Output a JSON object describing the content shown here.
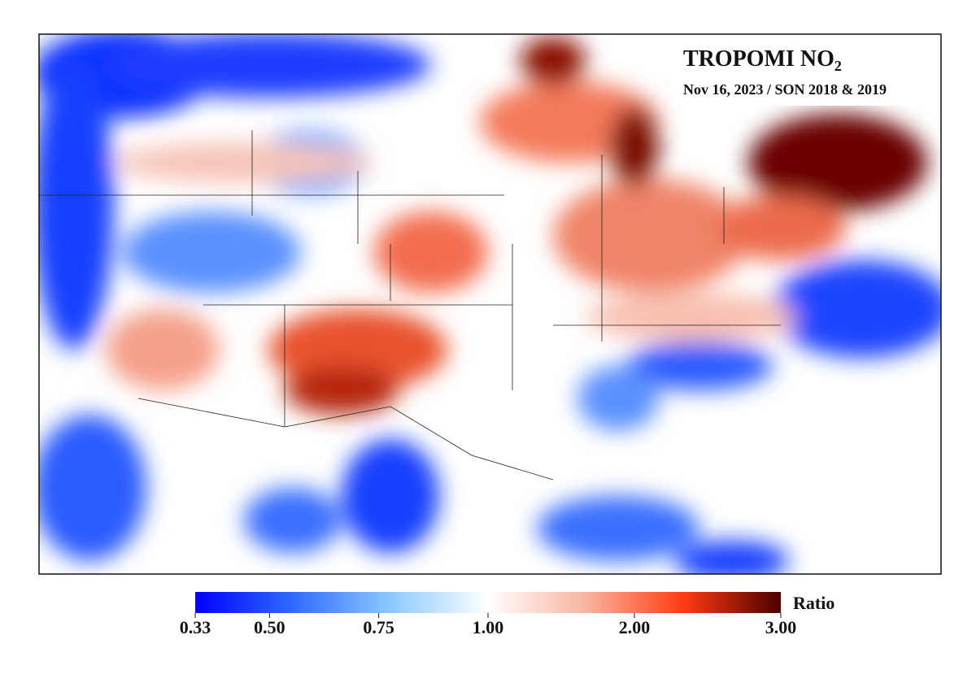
{
  "title": "TROPOMI NO",
  "title_subscript": "2",
  "subtitle": "Nov 16, 2023  / SON 2018 & 2019",
  "colorbar": {
    "label": "Ratio",
    "clim": [
      0.33,
      3.0
    ],
    "norm": "two-slope",
    "vcenter": 1.0,
    "colormap": [
      "#0000ff",
      "#2f6bff",
      "#8cc8ff",
      "#ffffff",
      "#f8b4a0",
      "#ff3b12",
      "#4d0000"
    ],
    "ticks": [
      {
        "value": 0.33,
        "label": "0.33"
      },
      {
        "value": 0.5,
        "label": "0.50"
      },
      {
        "value": 0.75,
        "label": "0.75"
      },
      {
        "value": 1.0,
        "label": "1.00"
      },
      {
        "value": 2.0,
        "label": "2.00"
      },
      {
        "value": 3.0,
        "label": "3.00"
      }
    ]
  }
}
